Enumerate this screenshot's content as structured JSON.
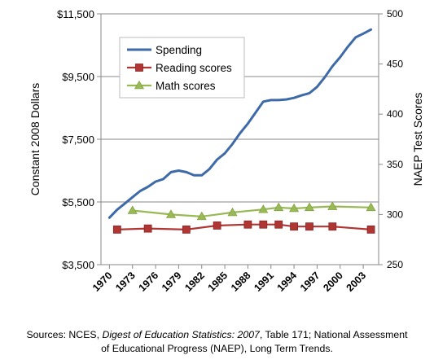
{
  "chart_data": {
    "type": "line",
    "categories": [
      "1970",
      "1973",
      "1976",
      "1979",
      "1982",
      "1985",
      "1988",
      "1991",
      "1994",
      "1997",
      "2000",
      "2003"
    ],
    "left_axis": {
      "label": "Constant 2008 Dollars",
      "min": 3500,
      "max": 11500,
      "tick_values": [
        3500,
        5500,
        7500,
        9500,
        11500
      ],
      "tick_labels": [
        "$3,500",
        "$5,500",
        "$7,500",
        "$9,500",
        "$11,500"
      ]
    },
    "right_axis": {
      "label": "NAEP Test Scores",
      "min": 250,
      "max": 500,
      "tick_values": [
        250,
        300,
        350,
        400,
        450,
        500
      ],
      "tick_labels": [
        "250",
        "300",
        "350",
        "400",
        "450",
        "500"
      ]
    },
    "grid": true,
    "legend_position": "top-left",
    "series": [
      {
        "name": "Spending",
        "axis": "left",
        "color": "#3e6aa8",
        "marker": "none",
        "x": [
          1970,
          1971,
          1972,
          1973,
          1974,
          1975,
          1976,
          1977,
          1978,
          1979,
          1980,
          1981,
          1982,
          1983,
          1984,
          1985,
          1986,
          1987,
          1988,
          1989,
          1990,
          1991,
          1992,
          1993,
          1994,
          1995,
          1996,
          1997,
          1998,
          1999,
          2000,
          2001,
          2002,
          2003,
          2004
        ],
        "y": [
          5000,
          5250,
          5450,
          5650,
          5850,
          5980,
          6150,
          6230,
          6450,
          6500,
          6450,
          6350,
          6350,
          6550,
          6850,
          7050,
          7350,
          7700,
          8000,
          8350,
          8700,
          8750,
          8750,
          8770,
          8820,
          8900,
          8970,
          9170,
          9480,
          9830,
          10120,
          10450,
          10750,
          10870,
          11000
        ]
      },
      {
        "name": "Reading scores",
        "axis": "right",
        "color": "#b03634",
        "marker": "square",
        "x": [
          1971,
          1975,
          1980,
          1984,
          1988,
          1990,
          1992,
          1994,
          1996,
          1999,
          2004
        ],
        "y": [
          285,
          286,
          285,
          289,
          290,
          290,
          290,
          288,
          288,
          288,
          285
        ]
      },
      {
        "name": "Math scores",
        "axis": "right",
        "color": "#98b954",
        "marker": "triangle",
        "x": [
          1973,
          1978,
          1982,
          1986,
          1990,
          1992,
          1994,
          1996,
          1999,
          2004
        ],
        "y": [
          304,
          300,
          298,
          302,
          305,
          307,
          306,
          307,
          308,
          307
        ]
      }
    ]
  },
  "footer": {
    "line1_prefix": "Sources: NCES, ",
    "line1_italic": "Digest of Education Statistics: 2007",
    "line1_suffix": ", Table 171; National Assessment",
    "line2": "of Educational Progress (NAEP), Long Term Trends."
  }
}
